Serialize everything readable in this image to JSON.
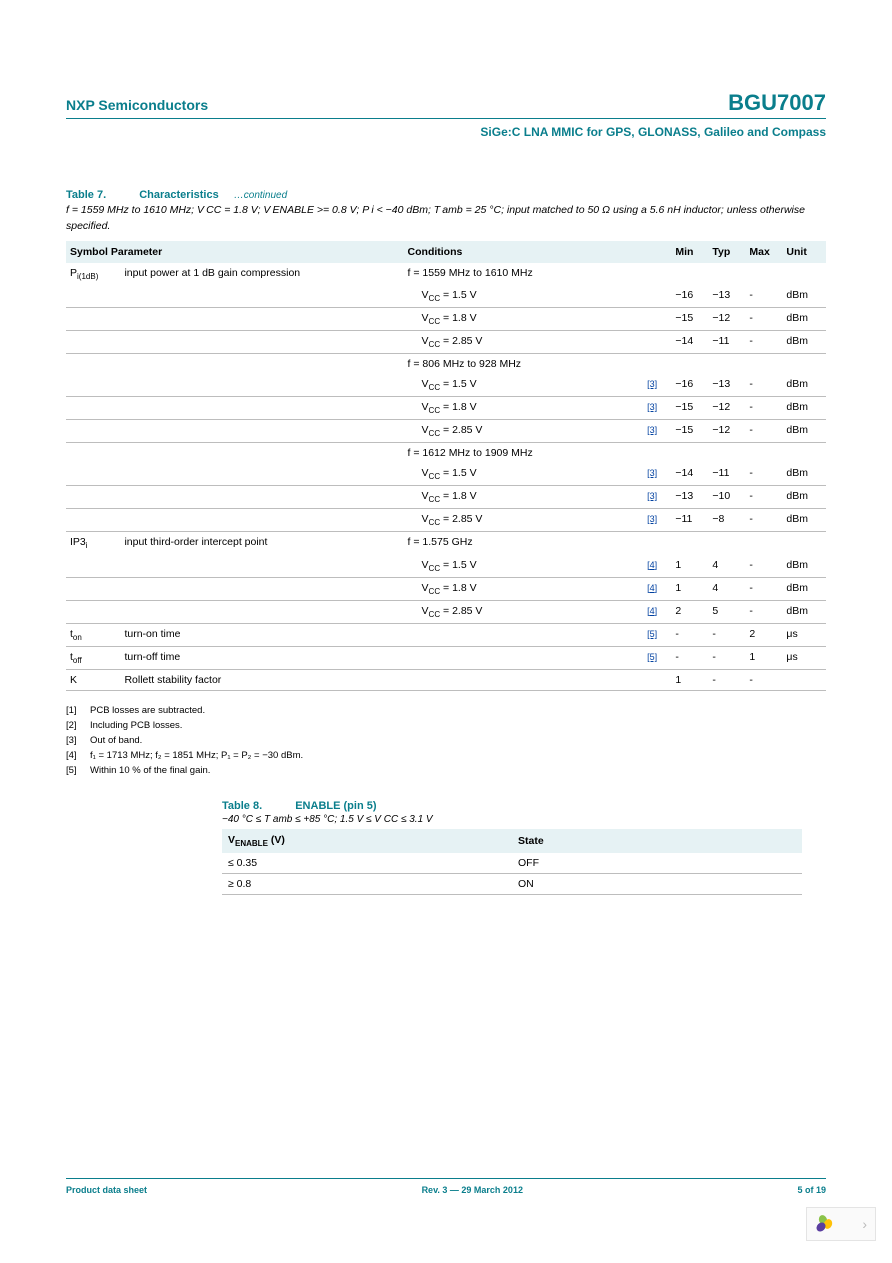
{
  "header": {
    "company": "NXP Semiconductors",
    "part": "BGU7007",
    "subtitle": "SiGe:C LNA MMIC for GPS, GLONASS, Galileo and Compass"
  },
  "table7": {
    "label": "Table 7.",
    "name": "Characteristics",
    "continued": "…continued",
    "cond_line": "f = 1559 MHz to 1610 MHz; V CC = 1.8 V; V ENABLE >= 0.8 V; P i < −40 dBm; T amb = 25 °C; input matched to 50 Ω using a 5.6 nH inductor; unless otherwise specified.",
    "headers": [
      "Symbol",
      "Parameter",
      "Conditions",
      "",
      "Min",
      "Typ",
      "Max",
      "Unit"
    ]
  },
  "rows": [
    {
      "sym": "P i(1dB)",
      "param": "input power at 1 dB gain compression",
      "cond": "f = 1559 MHz to 1610 MHz",
      "ref": "",
      "min": "",
      "typ": "",
      "max": "",
      "unit": "",
      "border": false,
      "sym_sub": "i(1dB)",
      "sym_main": "P"
    },
    {
      "sym": "",
      "param": "",
      "cond": "V CC = 1.5 V",
      "ref": "",
      "min": "−16",
      "typ": "−13",
      "max": "-",
      "unit": "dBm",
      "border": true,
      "indent": true
    },
    {
      "sym": "",
      "param": "",
      "cond": "V CC = 1.8 V",
      "ref": "",
      "min": "−15",
      "typ": "−12",
      "max": "-",
      "unit": "dBm",
      "border": true,
      "indent": true
    },
    {
      "sym": "",
      "param": "",
      "cond": "V CC = 2.85 V",
      "ref": "",
      "min": "−14",
      "typ": "−11",
      "max": "-",
      "unit": "dBm",
      "border": true,
      "indent": true
    },
    {
      "sym": "",
      "param": "",
      "cond": "f = 806 MHz to 928 MHz",
      "ref": "",
      "min": "",
      "typ": "",
      "max": "",
      "unit": "",
      "border": false
    },
    {
      "sym": "",
      "param": "",
      "cond": "V CC = 1.5 V",
      "ref": "[3]",
      "min": "−16",
      "typ": "−13",
      "max": "-",
      "unit": "dBm",
      "border": true,
      "indent": true
    },
    {
      "sym": "",
      "param": "",
      "cond": "V CC = 1.8 V",
      "ref": "[3]",
      "min": "−15",
      "typ": "−12",
      "max": "-",
      "unit": "dBm",
      "border": true,
      "indent": true
    },
    {
      "sym": "",
      "param": "",
      "cond": "V CC = 2.85 V",
      "ref": "[3]",
      "min": "−15",
      "typ": "−12",
      "max": "-",
      "unit": "dBm",
      "border": true,
      "indent": true
    },
    {
      "sym": "",
      "param": "",
      "cond": "f = 1612 MHz to 1909 MHz",
      "ref": "",
      "min": "",
      "typ": "",
      "max": "",
      "unit": "",
      "border": false
    },
    {
      "sym": "",
      "param": "",
      "cond": "V CC = 1.5 V",
      "ref": "[3]",
      "min": "−14",
      "typ": "−11",
      "max": "-",
      "unit": "dBm",
      "border": true,
      "indent": true
    },
    {
      "sym": "",
      "param": "",
      "cond": "V CC = 1.8 V",
      "ref": "[3]",
      "min": "−13",
      "typ": "−10",
      "max": "-",
      "unit": "dBm",
      "border": true,
      "indent": true
    },
    {
      "sym": "",
      "param": "",
      "cond": "V CC = 2.85 V",
      "ref": "[3]",
      "min": "−11",
      "typ": "−8",
      "max": "-",
      "unit": "dBm",
      "border": true,
      "indent": true
    },
    {
      "sym": "IP3 i",
      "param": "input third-order intercept point",
      "cond": "f = 1.575 GHz",
      "ref": "",
      "min": "",
      "typ": "",
      "max": "",
      "unit": "",
      "border": false,
      "sym_main": "IP3",
      "sym_sub": "i"
    },
    {
      "sym": "",
      "param": "",
      "cond": "V CC = 1.5 V",
      "ref": "[4]",
      "min": "1",
      "typ": "4",
      "max": "-",
      "unit": "dBm",
      "border": true,
      "indent": true
    },
    {
      "sym": "",
      "param": "",
      "cond": "V CC = 1.8 V",
      "ref": "[4]",
      "min": "1",
      "typ": "4",
      "max": "-",
      "unit": "dBm",
      "border": true,
      "indent": true
    },
    {
      "sym": "",
      "param": "",
      "cond": "V CC = 2.85 V",
      "ref": "[4]",
      "min": "2",
      "typ": "5",
      "max": "-",
      "unit": "dBm",
      "border": true,
      "indent": true
    },
    {
      "sym": "t on",
      "param": "turn-on time",
      "cond": "",
      "ref": "[5]",
      "min": "-",
      "typ": "-",
      "max": "2",
      "unit": "μs",
      "border": true,
      "sym_main": "t",
      "sym_sub": "on"
    },
    {
      "sym": "t off",
      "param": "turn-off time",
      "cond": "",
      "ref": "[5]",
      "min": "-",
      "typ": "-",
      "max": "1",
      "unit": "μs",
      "border": true,
      "sym_main": "t",
      "sym_sub": "off"
    },
    {
      "sym": "K",
      "param": "Rollett stability factor",
      "cond": "",
      "ref": "",
      "min": "1",
      "typ": "-",
      "max": "-",
      "unit": "",
      "border": true
    }
  ],
  "footnotes": [
    {
      "n": "[1]",
      "t": "PCB losses are subtracted."
    },
    {
      "n": "[2]",
      "t": "Including PCB losses."
    },
    {
      "n": "[3]",
      "t": "Out of band."
    },
    {
      "n": "[4]",
      "t": "f₁ = 1713 MHz; f₂ = 1851 MHz; P₁ = P₂ = −30 dBm."
    },
    {
      "n": "[5]",
      "t": "Within 10 % of the final gain."
    }
  ],
  "table8": {
    "label": "Table 8.",
    "name": "ENABLE (pin 5)",
    "cond": "−40 °C ≤ T amb ≤ +85 °C; 1.5 V ≤ V CC ≤ 3.1 V",
    "headers": [
      "V ENABLE (V)",
      "State"
    ],
    "rows": [
      {
        "v": "≤ 0.35",
        "s": "OFF"
      },
      {
        "v": "≥ 0.8",
        "s": "ON"
      }
    ]
  },
  "footer": {
    "left": "Product data sheet",
    "center": "Rev. 3 — 29 March 2012",
    "right": "5 of 19"
  },
  "colors": {
    "teal": "#0a7e8c",
    "header_bg": "#e6f2f4",
    "link": "#0040a0",
    "border": "#bdbdbd"
  }
}
